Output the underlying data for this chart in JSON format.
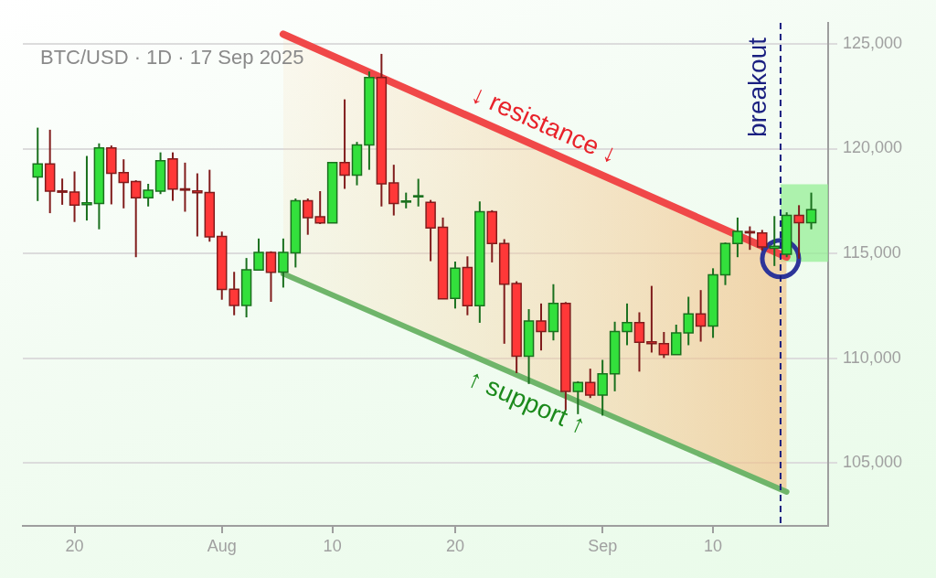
{
  "chart_data": {
    "type": "candlestick",
    "title": "BTC/USD · 1D · 17 Sep 2025",
    "x": [
      "2025-07-17",
      "2025-07-18",
      "2025-07-19",
      "2025-07-20",
      "2025-07-21",
      "2025-07-22",
      "2025-07-23",
      "2025-07-24",
      "2025-07-25",
      "2025-07-26",
      "2025-07-27",
      "2025-07-28",
      "2025-07-29",
      "2025-07-30",
      "2025-07-31",
      "2025-08-01",
      "2025-08-02",
      "2025-08-03",
      "2025-08-04",
      "2025-08-05",
      "2025-08-06",
      "2025-08-07",
      "2025-08-08",
      "2025-08-09",
      "2025-08-10",
      "2025-08-11",
      "2025-08-12",
      "2025-08-13",
      "2025-08-14",
      "2025-08-15",
      "2025-08-16",
      "2025-08-17",
      "2025-08-18",
      "2025-08-19",
      "2025-08-20",
      "2025-08-21",
      "2025-08-22",
      "2025-08-23",
      "2025-08-24",
      "2025-08-25",
      "2025-08-26",
      "2025-08-27",
      "2025-08-28",
      "2025-08-29",
      "2025-08-30",
      "2025-08-31",
      "2025-09-01",
      "2025-09-02",
      "2025-09-03",
      "2025-09-04",
      "2025-09-05",
      "2025-09-06",
      "2025-09-07",
      "2025-09-08",
      "2025-09-09",
      "2025-09-10",
      "2025-09-11",
      "2025-09-12",
      "2025-09-13",
      "2025-09-14",
      "2025-09-15",
      "2025-09-16",
      "2025-09-17",
      "2025-09-18"
    ],
    "ohlc": [
      [
        118650,
        121000,
        117500,
        119270
      ],
      [
        119270,
        120900,
        116920,
        117970
      ],
      [
        117980,
        118570,
        117320,
        117920
      ],
      [
        117930,
        118910,
        116500,
        117310
      ],
      [
        117330,
        119650,
        116570,
        117410
      ],
      [
        117380,
        120250,
        116150,
        120030
      ],
      [
        120030,
        120150,
        117340,
        118820
      ],
      [
        118850,
        119490,
        117150,
        118390
      ],
      [
        118430,
        118490,
        114820,
        117650
      ],
      [
        117650,
        118320,
        117240,
        118010
      ],
      [
        117970,
        119820,
        117830,
        119420
      ],
      [
        119510,
        119820,
        117510,
        118070
      ],
      [
        118080,
        119330,
        116990,
        118020
      ],
      [
        117980,
        118820,
        115810,
        117900
      ],
      [
        117910,
        118990,
        115560,
        115790
      ],
      [
        115810,
        116040,
        112790,
        113280
      ],
      [
        113290,
        114120,
        112050,
        112520
      ],
      [
        112520,
        114780,
        111950,
        114220
      ],
      [
        114210,
        115710,
        114190,
        115050
      ],
      [
        115050,
        115100,
        112690,
        114100
      ],
      [
        114110,
        115710,
        113370,
        115050
      ],
      [
        115030,
        117620,
        114330,
        117510
      ],
      [
        117510,
        117620,
        115890,
        116710
      ],
      [
        116750,
        117970,
        116400,
        116460
      ],
      [
        116460,
        119340,
        116460,
        119340
      ],
      [
        119340,
        122350,
        118080,
        118740
      ],
      [
        118740,
        120320,
        118250,
        120180
      ],
      [
        120180,
        123680,
        118990,
        123390
      ],
      [
        123390,
        124520,
        117240,
        118320
      ],
      [
        118360,
        119230,
        116810,
        117380
      ],
      [
        117450,
        117900,
        117150,
        117500
      ],
      [
        117700,
        118560,
        117240,
        117750
      ],
      [
        117440,
        117550,
        114630,
        116220
      ],
      [
        116250,
        116710,
        112820,
        112830
      ],
      [
        112860,
        114610,
        112370,
        114300
      ],
      [
        114330,
        114860,
        112050,
        112510
      ],
      [
        112510,
        117480,
        111690,
        116990
      ],
      [
        116990,
        117060,
        114570,
        115470
      ],
      [
        115470,
        115680,
        110690,
        113530
      ],
      [
        113560,
        113670,
        109290,
        110090
      ],
      [
        110090,
        112340,
        108770,
        111780
      ],
      [
        111780,
        112610,
        110370,
        111270
      ],
      [
        111270,
        113530,
        110850,
        112620
      ],
      [
        112620,
        112680,
        107510,
        108420
      ],
      [
        108420,
        108900,
        107330,
        108840
      ],
      [
        108840,
        109500,
        108100,
        108240
      ],
      [
        108240,
        109920,
        107260,
        109260
      ],
      [
        109260,
        111740,
        108420,
        111270
      ],
      [
        111270,
        112610,
        110620,
        111700
      ],
      [
        111700,
        112190,
        109360,
        110760
      ],
      [
        110780,
        113450,
        110270,
        110700
      ],
      [
        110690,
        111250,
        110010,
        110170
      ],
      [
        110170,
        111600,
        110170,
        111210
      ],
      [
        111210,
        112930,
        110620,
        112110
      ],
      [
        112110,
        113250,
        110790,
        111530
      ],
      [
        111530,
        114290,
        110970,
        113980
      ],
      [
        113980,
        115520,
        113490,
        115470
      ],
      [
        115470,
        116710,
        114820,
        116050
      ],
      [
        116040,
        116290,
        115170,
        115980
      ],
      [
        115980,
        116120,
        115130,
        115310
      ],
      [
        115240,
        116780,
        114400,
        115340
      ],
      [
        114960,
        116960,
        114820,
        116820
      ],
      [
        116820,
        117300,
        114750,
        116470
      ],
      [
        116470,
        117900,
        116150,
        117090
      ]
    ],
    "colors": [
      "#33e03c",
      "#ff3838",
      "#ff3838",
      "#ff3838",
      "#33e03c",
      "#33e03c",
      "#ff3838",
      "#ff3838",
      "#ff3838",
      "#33e03c",
      "#33e03c",
      "#ff3838",
      "#ff3838",
      "#ff3838",
      "#ff3838",
      "#ff3838",
      "#ff3838",
      "#33e03c",
      "#33e03c",
      "#ff3838",
      "#33e03c",
      "#33e03c",
      "#ff3838",
      "#ff3838",
      "#33e03c",
      "#ff3838",
      "#33e03c",
      "#33e03c",
      "#ff3838",
      "#ff3838",
      "#33e03c",
      "#33e03c",
      "#ff3838",
      "#ff3838",
      "#33e03c",
      "#ff3838",
      "#33e03c",
      "#ff3838",
      "#ff3838",
      "#ff3838",
      "#33e03c",
      "#ff3838",
      "#33e03c",
      "#ff3838",
      "#33e03c",
      "#ff3838",
      "#33e03c",
      "#33e03c",
      "#33e03c",
      "#ff3838",
      "#ff3838",
      "#ff3838",
      "#33e03c",
      "#33e03c",
      "#ff3838",
      "#33e03c",
      "#33e03c",
      "#33e03c",
      "#ff3838",
      "#ff3838",
      "#33e03c",
      "#33e03c",
      "#ff3838",
      "#33e03c"
    ],
    "series": [
      {
        "type": "line",
        "name": "↓ resistance ↓",
        "color": "#f04848",
        "x": [
          "2025-08-06",
          "2025-09-16"
        ],
        "values": [
          125460,
          114830
        ],
        "lower": [
          114030,
          103620
        ],
        "upper": [
          125460,
          114830
        ]
      },
      {
        "type": "line",
        "name": "↑ support ↑",
        "color": "#6fb56a",
        "x": [
          "2025-08-06",
          "2025-09-16"
        ],
        "values": [
          114030,
          103620
        ]
      },
      {
        "type": "scatter",
        "color": "#2d3599",
        "x": [
          "2025-09-15T12:00"
        ],
        "values": [
          114750
        ],
        "marker": "circle"
      }
    ],
    "xlim": [
      "2025-07-15T19:00",
      "2025-09-19T09:00"
    ],
    "xticks": [
      {
        "value": "2025-07-20",
        "label": "20"
      },
      {
        "value": "2025-08-01",
        "label": "Aug"
      },
      {
        "value": "2025-08-10",
        "label": "10"
      },
      {
        "value": "2025-08-20",
        "label": "20"
      },
      {
        "value": "2025-09-01",
        "label": "Sep"
      },
      {
        "value": "2025-09-10",
        "label": "10"
      }
    ],
    "ylim": [
      102000,
      126000
    ],
    "yticks": [
      {
        "value": 105000,
        "label": "105,000"
      },
      {
        "value": 110000,
        "label": "110,000"
      },
      {
        "value": 115000,
        "label": "115,000"
      },
      {
        "value": 120000,
        "label": "120,000"
      },
      {
        "value": 125000,
        "label": "125,000"
      }
    ],
    "ref_lines": [
      {
        "axis": "x",
        "value": "2025-09-15T12:00",
        "label": "breakout",
        "color": "#1a1f80",
        "line_style": "dashed"
      }
    ],
    "bands": [
      {
        "axis": "y",
        "from": 114600,
        "to": 118300,
        "color": "#90ee90"
      }
    ],
    "grid": "y",
    "legend": false
  }
}
